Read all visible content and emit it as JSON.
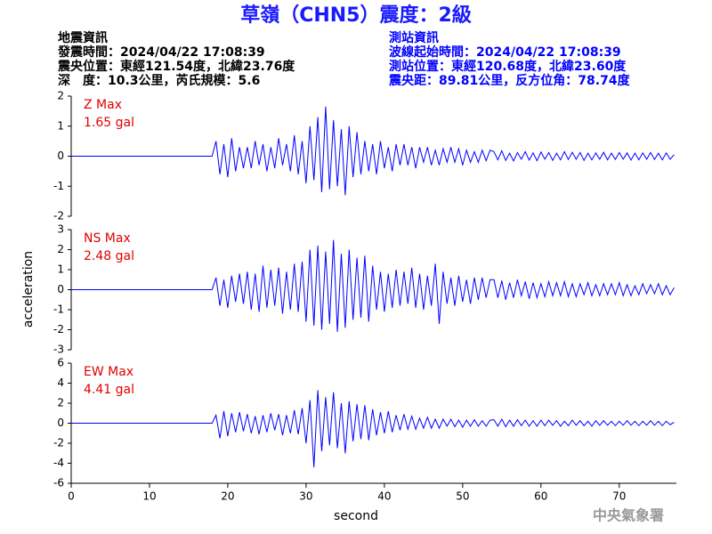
{
  "header": {
    "title": "草嶺（CHN5）震度：2級",
    "left": [
      "地震資訊",
      "發震時間：2024/04/22 17:08:39",
      "震央位置：東經121.54度，北緯23.76度",
      "深　度：10.3公里，芮氏規模：5.6"
    ],
    "right": [
      "測站資訊",
      "波線起始時間：2024/04/22 17:08:39",
      "測站位置：東經120.68度，北緯23.60度",
      "震央距：89.81公里，反方位角：78.74度"
    ]
  },
  "ylabel": "acceleration",
  "xlabel": "second",
  "xlim": [
    0,
    77.3
  ],
  "xticks": [
    0,
    10,
    20,
    30,
    40,
    50,
    60,
    70
  ],
  "footer": "中央氣象署",
  "chart_data": [
    {
      "type": "line",
      "label": "Z Max",
      "max_label": "1.65 gal",
      "color": "#0000ff",
      "ylim": [
        -2,
        2
      ],
      "yticks": [
        -2,
        -1,
        0,
        1,
        2
      ],
      "x": [
        0,
        18,
        18.5,
        19,
        19.5,
        20,
        20.5,
        21,
        21.5,
        22,
        22.5,
        23,
        23.5,
        24,
        24.5,
        25,
        25.5,
        26,
        26.5,
        27,
        27.5,
        28,
        28.5,
        29,
        29.5,
        30,
        30.5,
        31,
        31.5,
        32,
        32.5,
        33,
        33.5,
        34,
        34.5,
        35,
        35.5,
        36,
        36.5,
        37,
        37.5,
        38,
        38.5,
        39,
        39.5,
        40,
        40.5,
        41,
        41.5,
        42,
        42.5,
        43,
        43.5,
        44,
        44.5,
        45,
        45.5,
        46,
        46.5,
        47,
        47.5,
        48,
        48.5,
        49,
        49.5,
        50,
        50.5,
        51,
        51.5,
        52,
        52.5,
        53,
        53.5,
        54,
        54.5,
        55,
        55.5,
        56,
        56.5,
        57,
        57.5,
        58,
        58.5,
        59,
        59.5,
        60,
        60.5,
        61,
        61.5,
        62,
        62.5,
        63,
        63.5,
        64,
        64.5,
        65,
        65.5,
        66,
        66.5,
        67,
        67.5,
        68,
        68.5,
        69,
        69.5,
        70,
        70.5,
        71,
        71.5,
        72,
        72.5,
        73,
        73.5,
        74,
        74.5,
        75,
        75.5,
        76,
        76.5,
        77
      ],
      "values": [
        0,
        0,
        0.5,
        -0.6,
        0.4,
        -0.7,
        0.6,
        -0.5,
        0.3,
        -0.4,
        0.3,
        -0.4,
        0.5,
        -0.3,
        0.4,
        -0.5,
        0.3,
        -0.4,
        0.6,
        -0.3,
        0.4,
        -0.5,
        0.7,
        -0.6,
        0.5,
        -0.9,
        1.0,
        -0.8,
        1.3,
        -1.2,
        1.65,
        -1.1,
        1.2,
        -1.0,
        0.9,
        -1.3,
        1.0,
        -0.7,
        0.8,
        -0.6,
        0.5,
        -0.5,
        0.4,
        -0.6,
        0.5,
        -0.4,
        0.3,
        -0.5,
        0.4,
        -0.3,
        0.4,
        -0.3,
        0.3,
        -0.4,
        0.3,
        -0.2,
        0.3,
        -0.3,
        0.2,
        -0.3,
        0.25,
        -0.2,
        0.3,
        -0.2,
        0.25,
        -0.3,
        0.2,
        -0.2,
        0.15,
        -0.2,
        0.2,
        -0.15,
        0.2,
        0.15,
        -0.12,
        0.18,
        -0.14,
        0.1,
        -0.16,
        0.12,
        -0.1,
        0.15,
        -0.13,
        0.11,
        -0.15,
        0.14,
        -0.1,
        0.12,
        -0.14,
        0.1,
        -0.12,
        0.15,
        -0.11,
        0.13,
        -0.1,
        0.12,
        -0.14,
        0.1,
        -0.12,
        0.11,
        -0.1,
        0.13,
        -0.12,
        0.1,
        -0.11,
        0.12,
        -0.1,
        0.11,
        -0.13,
        0.1,
        -0.12,
        0.11,
        -0.1,
        0.12,
        -0.11,
        0.1,
        -0.12,
        0.11,
        -0.1,
        0.05
      ]
    },
    {
      "type": "line",
      "label": "NS Max",
      "max_label": "2.48 gal",
      "color": "#0000ff",
      "ylim": [
        -3,
        3
      ],
      "yticks": [
        -3,
        -2,
        -1,
        0,
        1,
        2,
        3
      ],
      "x": [
        0,
        18,
        18.5,
        19,
        19.5,
        20,
        20.5,
        21,
        21.5,
        22,
        22.5,
        23,
        23.5,
        24,
        24.5,
        25,
        25.5,
        26,
        26.5,
        27,
        27.5,
        28,
        28.5,
        29,
        29.5,
        30,
        30.5,
        31,
        31.5,
        32,
        32.5,
        33,
        33.5,
        34,
        34.5,
        35,
        35.5,
        36,
        36.5,
        37,
        37.5,
        38,
        38.5,
        39,
        39.5,
        40,
        40.5,
        41,
        41.5,
        42,
        42.5,
        43,
        43.5,
        44,
        44.5,
        45,
        45.5,
        46,
        46.5,
        47,
        47.5,
        48,
        48.5,
        49,
        49.5,
        50,
        50.5,
        51,
        51.5,
        52,
        52.5,
        53,
        53.5,
        54,
        54.5,
        55,
        55.5,
        56,
        56.5,
        57,
        57.5,
        58,
        58.5,
        59,
        59.5,
        60,
        60.5,
        61,
        61.5,
        62,
        62.5,
        63,
        63.5,
        64,
        64.5,
        65,
        65.5,
        66,
        66.5,
        67,
        67.5,
        68,
        68.5,
        69,
        69.5,
        70,
        70.5,
        71,
        71.5,
        72,
        72.5,
        73,
        73.5,
        74,
        74.5,
        75,
        75.5,
        76,
        76.5,
        77
      ],
      "values": [
        0,
        0,
        0.6,
        -0.8,
        0.5,
        -0.9,
        0.7,
        -0.6,
        0.8,
        -0.7,
        0.9,
        -1.0,
        0.8,
        -1.1,
        1.2,
        -0.9,
        1.0,
        -0.8,
        1.1,
        -1.2,
        0.9,
        -1.0,
        1.3,
        -1.1,
        1.4,
        -1.6,
        2.0,
        -1.8,
        2.2,
        -2.0,
        1.9,
        -1.7,
        2.48,
        -2.1,
        1.8,
        -1.9,
        2.0,
        -1.5,
        1.6,
        -1.4,
        1.7,
        -1.6,
        1.2,
        -1.0,
        0.9,
        -1.1,
        0.8,
        -0.9,
        1.0,
        -0.8,
        0.9,
        -0.7,
        1.1,
        -0.9,
        0.8,
        -1.0,
        0.7,
        -0.8,
        1.3,
        -1.7,
        0.9,
        -0.7,
        0.6,
        -0.8,
        0.7,
        -0.6,
        0.5,
        -0.7,
        0.6,
        -0.5,
        0.6,
        -0.4,
        0.5,
        0.5,
        -0.4,
        0.45,
        -0.5,
        0.35,
        -0.4,
        0.5,
        -0.3,
        0.4,
        -0.45,
        0.35,
        -0.4,
        0.3,
        -0.35,
        0.4,
        -0.3,
        0.35,
        -0.3,
        0.4,
        -0.35,
        0.3,
        -0.35,
        0.3,
        -0.25,
        0.35,
        -0.3,
        0.25,
        -0.3,
        0.3,
        -0.25,
        0.3,
        -0.25,
        0.35,
        -0.3,
        0.25,
        -0.3,
        0.2,
        -0.25,
        0.3,
        -0.2,
        0.25,
        -0.2,
        0.3,
        -0.25,
        0.2,
        -0.25,
        0.1
      ]
    },
    {
      "type": "line",
      "label": "EW Max",
      "max_label": "4.41 gal",
      "color": "#0000ff",
      "ylim": [
        -6,
        6
      ],
      "yticks": [
        -6,
        -4,
        -2,
        0,
        2,
        4,
        6
      ],
      "x": [
        0,
        18,
        18.5,
        19,
        19.5,
        20,
        20.5,
        21,
        21.5,
        22,
        22.5,
        23,
        23.5,
        24,
        24.5,
        25,
        25.5,
        26,
        26.5,
        27,
        27.5,
        28,
        28.5,
        29,
        29.5,
        30,
        30.5,
        31,
        31.5,
        32,
        32.5,
        33,
        33.5,
        34,
        34.5,
        35,
        35.5,
        36,
        36.5,
        37,
        37.5,
        38,
        38.5,
        39,
        39.5,
        40,
        40.5,
        41,
        41.5,
        42,
        42.5,
        43,
        43.5,
        44,
        44.5,
        45,
        45.5,
        46,
        46.5,
        47,
        47.5,
        48,
        48.5,
        49,
        49.5,
        50,
        50.5,
        51,
        51.5,
        52,
        52.5,
        53,
        53.5,
        54,
        54.5,
        55,
        55.5,
        56,
        56.5,
        57,
        57.5,
        58,
        58.5,
        59,
        59.5,
        60,
        60.5,
        61,
        61.5,
        62,
        62.5,
        63,
        63.5,
        64,
        64.5,
        65,
        65.5,
        66,
        66.5,
        67,
        67.5,
        68,
        68.5,
        69,
        69.5,
        70,
        70.5,
        71,
        71.5,
        72,
        72.5,
        73,
        73.5,
        74,
        74.5,
        75,
        75.5,
        76,
        76.5,
        77
      ],
      "values": [
        0,
        0,
        0.8,
        -1.5,
        1.2,
        -1.3,
        1.0,
        -0.9,
        1.1,
        -0.8,
        0.9,
        -1.0,
        0.7,
        -1.1,
        0.8,
        -0.9,
        1.0,
        -0.7,
        0.9,
        -1.2,
        0.8,
        -1.0,
        1.3,
        -1.1,
        1.5,
        -2.0,
        2.3,
        -4.41,
        3.3,
        -2.8,
        2.6,
        -2.2,
        3.1,
        -2.5,
        2.0,
        -3.0,
        2.2,
        -1.8,
        1.9,
        -1.6,
        1.8,
        -1.7,
        1.4,
        -1.2,
        1.1,
        -1.0,
        1.2,
        -0.9,
        0.8,
        -0.7,
        0.9,
        -0.6,
        0.7,
        -0.6,
        0.5,
        -0.5,
        0.6,
        -0.5,
        0.4,
        -0.5,
        0.4,
        -0.3,
        0.4,
        -0.35,
        0.3,
        -0.4,
        0.3,
        -0.3,
        0.35,
        -0.3,
        0.25,
        -0.3,
        0.3,
        0.35,
        -0.3,
        0.4,
        -0.35,
        0.3,
        -0.3,
        0.35,
        -0.25,
        0.3,
        -0.3,
        0.25,
        -0.3,
        0.3,
        -0.25,
        0.3,
        -0.2,
        0.25,
        -0.3,
        0.2,
        -0.25,
        0.3,
        -0.2,
        0.25,
        -0.25,
        0.2,
        -0.3,
        0.25,
        -0.2,
        0.25,
        -0.2,
        0.2,
        -0.25,
        0.2,
        -0.2,
        0.25,
        -0.2,
        0.2,
        -0.25,
        0.2,
        -0.2,
        0.25,
        -0.2,
        0.2,
        -0.25,
        0.2,
        -0.15,
        0.1
      ]
    }
  ]
}
